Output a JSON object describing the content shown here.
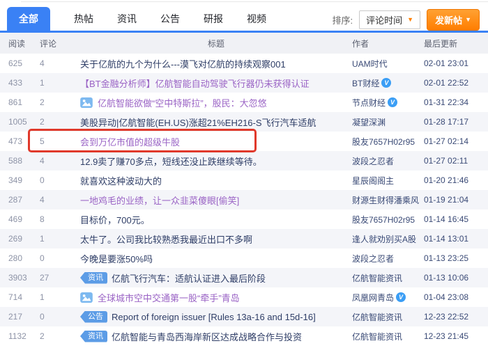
{
  "tab_bar": {
    "tabs": [
      {
        "label": "全部",
        "active": true
      },
      {
        "label": "热帖",
        "active": false
      },
      {
        "label": "资讯",
        "active": false
      },
      {
        "label": "公告",
        "active": false
      },
      {
        "label": "研报",
        "active": false
      },
      {
        "label": "视频",
        "active": false
      }
    ],
    "sort": {
      "label": "排序:",
      "selected": "评论时间"
    },
    "new_post_button": "发新帖"
  },
  "icons": {
    "caret_down": "▼",
    "verified_badge": "V",
    "picture_icon": "picture-thumbnail"
  },
  "table": {
    "headers": {
      "reads": "阅读",
      "comments": "评论",
      "title": "标题",
      "author": "作者",
      "updated": "最后更新"
    },
    "rows": [
      {
        "reads": "625",
        "comments": "4",
        "title": "关于亿航的九个为什么---漠飞对亿航的持续观察001",
        "author": "UAM时代",
        "time": "02-01 23:01",
        "visited": false,
        "verified": false,
        "pic": false,
        "badge": null,
        "highlighted": false
      },
      {
        "reads": "433",
        "comments": "1",
        "title": "【BT金融分析师】亿航智能自动驾驶飞行器仍未获得认证",
        "author": "BT财经",
        "time": "02-01 22:52",
        "visited": true,
        "verified": true,
        "pic": false,
        "badge": null,
        "highlighted": false
      },
      {
        "reads": "861",
        "comments": "2",
        "title": "亿航智能欲做“空中特斯拉”，股民：大忽悠",
        "author": "节点财经",
        "time": "01-31 22:34",
        "visited": true,
        "verified": true,
        "pic": true,
        "badge": null,
        "highlighted": false
      },
      {
        "reads": "1005",
        "comments": "2",
        "title": "美股异动|亿航智能(EH.US)涨超21%EH216-S飞行汽车适航",
        "author": "凝望深渊",
        "time": "01-28 17:17",
        "visited": false,
        "verified": false,
        "pic": false,
        "badge": null,
        "highlighted": false
      },
      {
        "reads": "473",
        "comments": "5",
        "title": "会到万亿市值的超级牛股",
        "author": "股友7657H02r95",
        "time": "01-27 02:14",
        "visited": true,
        "verified": false,
        "pic": false,
        "badge": null,
        "highlighted": true
      },
      {
        "reads": "588",
        "comments": "4",
        "title": "12.9卖了赚70多点，短线还没止跌继续等待。",
        "author": "波段之忍者",
        "time": "01-27 02:11",
        "visited": false,
        "verified": false,
        "pic": false,
        "badge": null,
        "highlighted": false
      },
      {
        "reads": "349",
        "comments": "0",
        "title": "就喜欢这种波动大的",
        "author": "星辰阁阁主",
        "time": "01-20 21:46",
        "visited": false,
        "verified": false,
        "pic": false,
        "badge": null,
        "highlighted": false
      },
      {
        "reads": "287",
        "comments": "4",
        "title": "一地鸡毛的业绩，让一众韭菜傻眼[偷笑]",
        "author": "财源生财得潘乘风",
        "time": "01-19 21:04",
        "visited": true,
        "verified": false,
        "pic": false,
        "badge": null,
        "highlighted": false
      },
      {
        "reads": "469",
        "comments": "8",
        "title": "目标价，700元。",
        "author": "股友7657H02r95",
        "time": "01-14 16:45",
        "visited": false,
        "verified": false,
        "pic": false,
        "badge": null,
        "highlighted": false
      },
      {
        "reads": "269",
        "comments": "1",
        "title": "太牛了。公司我比较熟悉我最近出口不多啊",
        "author": "逢人就劝别买A股",
        "time": "01-14 13:01",
        "visited": false,
        "verified": false,
        "pic": false,
        "badge": null,
        "highlighted": false
      },
      {
        "reads": "280",
        "comments": "0",
        "title": "今晚是要涨50%吗",
        "author": "波段之忍者",
        "time": "01-13 23:25",
        "visited": false,
        "verified": false,
        "pic": false,
        "badge": null,
        "highlighted": false
      },
      {
        "reads": "3903",
        "comments": "27",
        "title": "亿航飞行汽车：适航认证进入最后阶段",
        "author": "亿航智能资讯",
        "time": "01-13 10:06",
        "visited": false,
        "verified": false,
        "pic": false,
        "badge": "资讯",
        "highlighted": false
      },
      {
        "reads": "714",
        "comments": "1",
        "title": "全球城市空中交通第一股“牵手”青岛",
        "author": "凤凰网青岛",
        "time": "01-04 23:08",
        "visited": true,
        "verified": true,
        "pic": true,
        "badge": null,
        "highlighted": false
      },
      {
        "reads": "217",
        "comments": "0",
        "title": "Report of foreign issuer [Rules 13a-16 and 15d-16]",
        "author": "亿航智能资讯",
        "time": "12-23 22:52",
        "visited": false,
        "verified": false,
        "pic": false,
        "badge": "公告",
        "highlighted": false
      },
      {
        "reads": "1132",
        "comments": "2",
        "title": "亿航智能与青岛西海岸新区达成战略合作与投资",
        "author": "亿航智能资讯",
        "time": "12-23 21:45",
        "visited": false,
        "verified": false,
        "pic": false,
        "badge": "资讯",
        "highlighted": false
      }
    ]
  },
  "annotation": {
    "highlight_box_color": "#e0392b"
  },
  "colors": {
    "accent_blue": "#3a81f5",
    "button_orange": "#ff8000",
    "badge_blue": "#5c9ce6",
    "verified_blue": "#3b9ef5",
    "visited_purple": "#9a63c5",
    "title_navy": "#2e3d66",
    "highlight_red": "#e0392b"
  }
}
